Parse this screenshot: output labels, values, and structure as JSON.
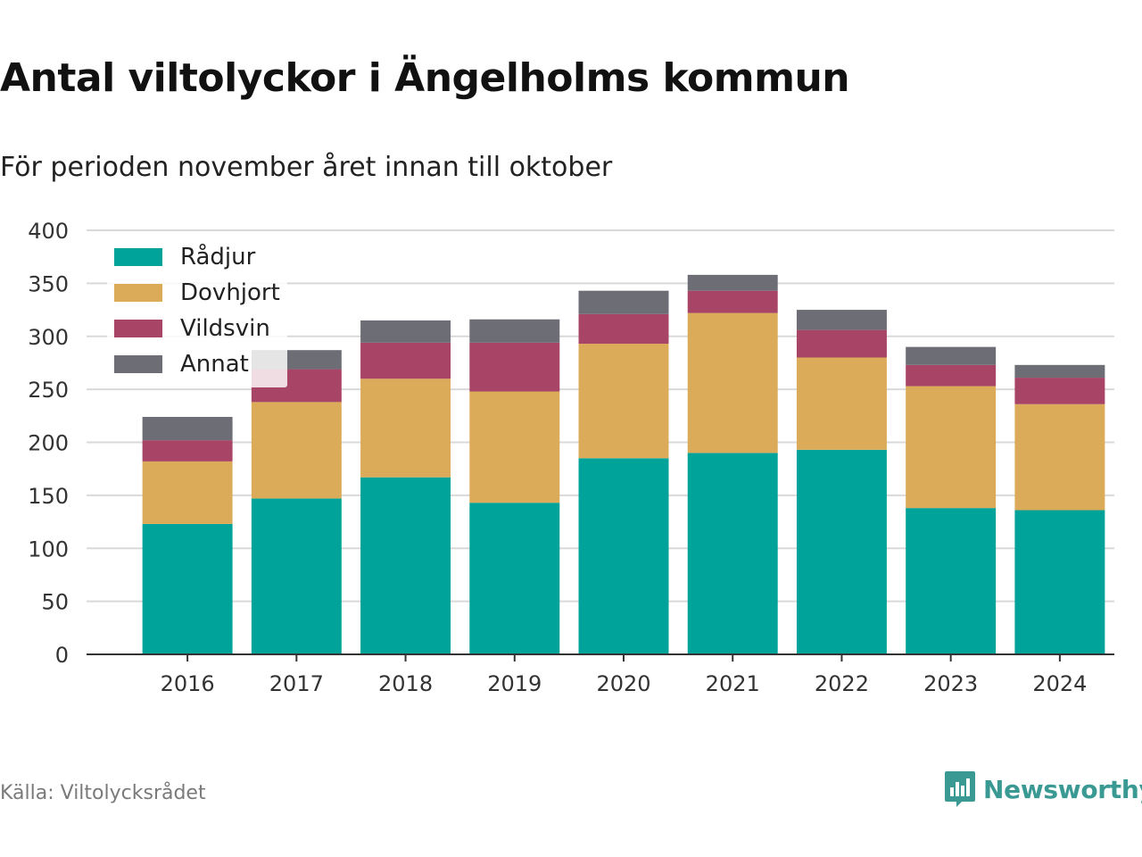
{
  "title": "Antal viltolyckor i Ängelholms kommun",
  "subtitle": "För perioden november året innan till oktober",
  "source": "Källa: Viltolycksrådet",
  "brand": {
    "name": "Newsworthy",
    "icon": "newsworthy-logo-icon",
    "color": "#3a9a93"
  },
  "chart_data": {
    "type": "bar",
    "stacked": true,
    "categories": [
      "2016",
      "2017",
      "2018",
      "2019",
      "2020",
      "2021",
      "2022",
      "2023",
      "2024"
    ],
    "series": [
      {
        "name": "Rådjur",
        "color": "#00a39a",
        "values": [
          123,
          147,
          167,
          143,
          185,
          190,
          193,
          138,
          136
        ]
      },
      {
        "name": "Dovhjort",
        "color": "#dbab59",
        "values": [
          59,
          91,
          93,
          105,
          108,
          132,
          87,
          115,
          100
        ]
      },
      {
        "name": "Vildsvin",
        "color": "#a84466",
        "values": [
          20,
          31,
          34,
          46,
          28,
          21,
          26,
          20,
          25
        ]
      },
      {
        "name": "Annat",
        "color": "#6d6d75",
        "values": [
          22,
          18,
          21,
          22,
          22,
          15,
          19,
          17,
          12
        ]
      }
    ],
    "y_ticks": [
      "0",
      "50",
      "100",
      "150",
      "200",
      "250",
      "300",
      "350",
      "400"
    ],
    "ylim": [
      0,
      400
    ],
    "grid": true,
    "legend_position": "top-left"
  }
}
